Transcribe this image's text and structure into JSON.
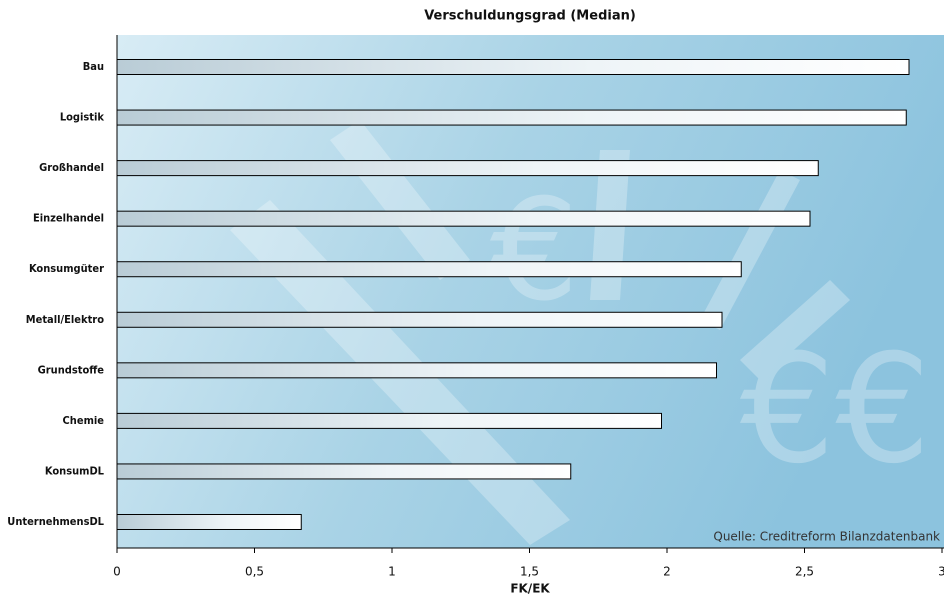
{
  "chart_data": {
    "type": "bar",
    "orientation": "horizontal",
    "title": "Verschuldungsgrad (Median)",
    "x_label": "FK/EK",
    "annotation": "Quelle: Creditreform Bilanzdatenbank",
    "categories": [
      "Bau",
      "Logistik",
      "Großhandel",
      "Einzelhandel",
      "Konsumgüter",
      "Metall/Elektro",
      "Grundstoffe",
      "Chemie",
      "KonsumDL",
      "UnternehmensDL"
    ],
    "values": [
      2.88,
      2.87,
      2.55,
      2.52,
      2.27,
      2.2,
      2.18,
      1.98,
      1.65,
      0.67
    ],
    "xlim": [
      0,
      3
    ],
    "xticks": [
      0,
      {
        "value": 0.5,
        "label": "0,5"
      },
      1,
      {
        "value": 1.5,
        "label": "1,5"
      },
      2,
      {
        "value": 2.5,
        "label": "2,5"
      },
      3
    ],
    "grid": false
  }
}
